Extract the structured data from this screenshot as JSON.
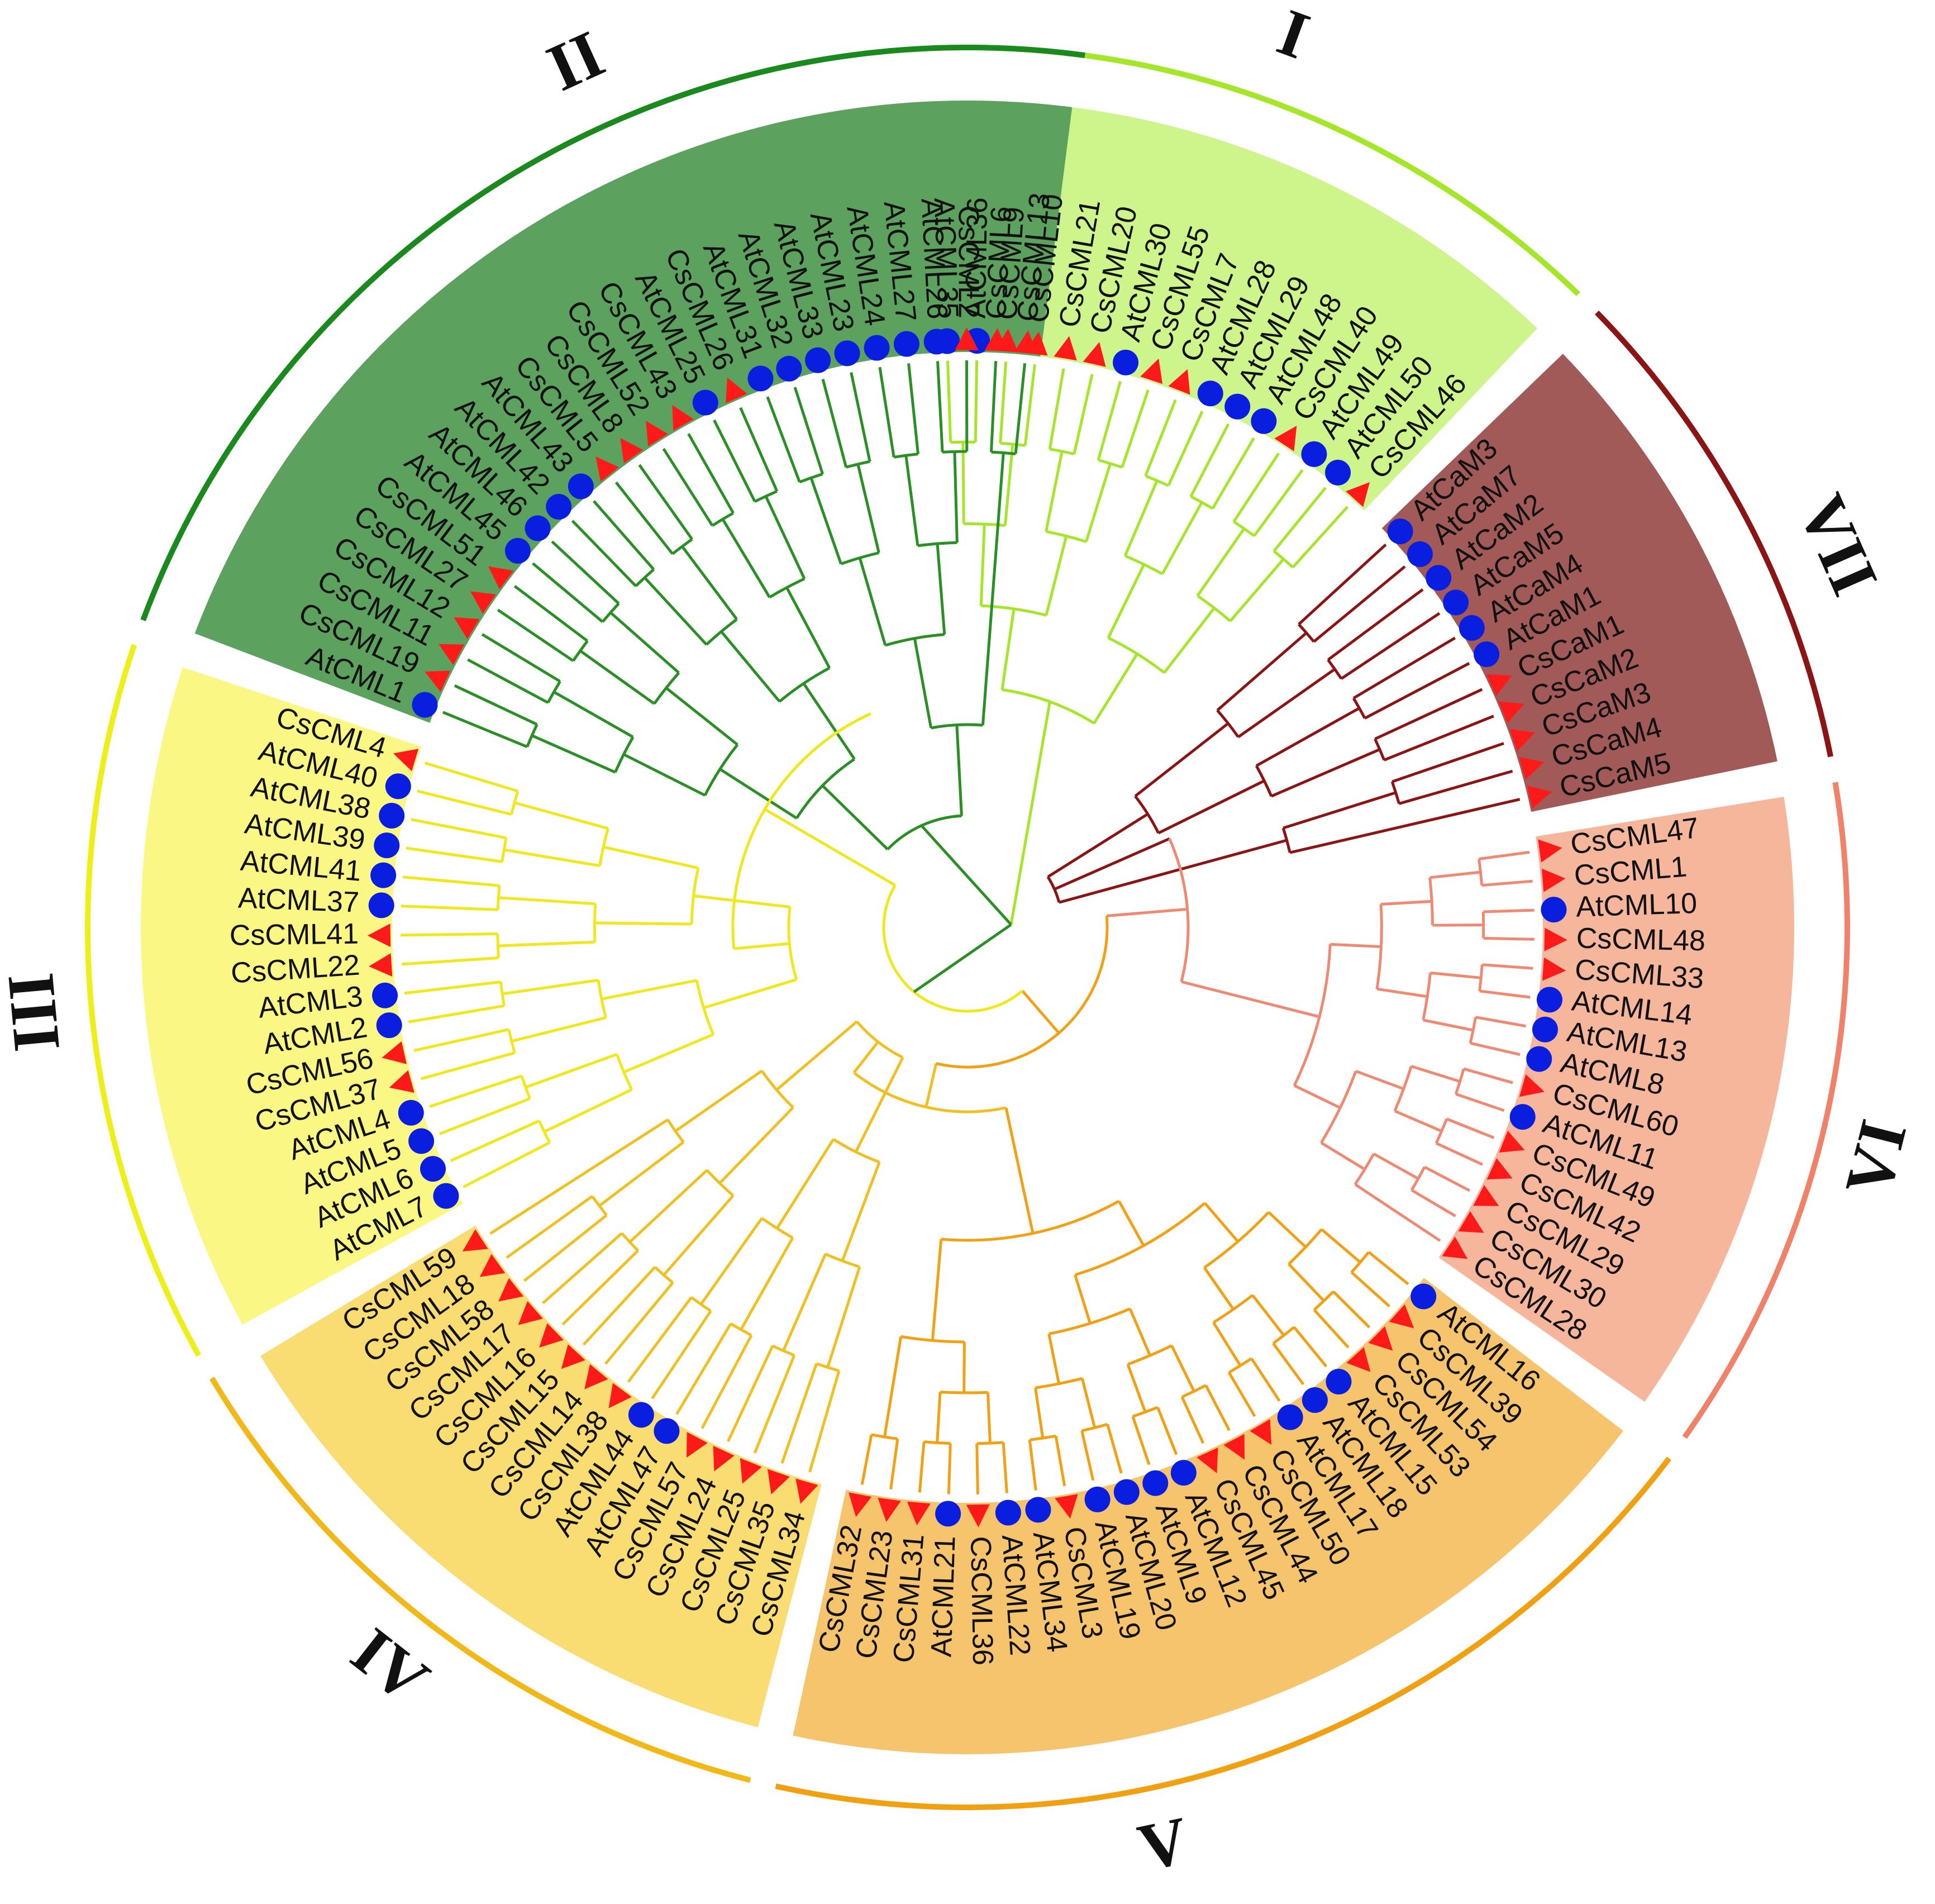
{
  "title": "Phylogenetic tree of CML and CaM proteins (Cs and At)",
  "marker_legend": {
    "Cs": {
      "shape": "triangle",
      "color": "#ff1a1a"
    },
    "At": {
      "shape": "circle",
      "color": "#0a1ee0"
    }
  },
  "clades": [
    {
      "numeral": "I",
      "band_color": "#cdf58c",
      "line_color": "#a6e62a",
      "branch_color": "#a6e62a",
      "leaves": [
        "AtCML35",
        "AtCML36",
        "CsCML9",
        "CsCML10",
        "CsCML21",
        "CsCML20",
        "AtCML30",
        "CsCML55",
        "CsCML7",
        "AtCML28",
        "AtCML29",
        "AtCML48",
        "CsCML40",
        "AtCML49",
        "AtCML50",
        "CsCML46"
      ]
    },
    {
      "numeral": "VII",
      "band_color": "#a25a58",
      "line_color": "#8b1414",
      "branch_color": "#8b1414",
      "leaves": [
        "AtCaM3",
        "AtCaM7",
        "AtCaM2",
        "AtCaM5",
        "AtCaM4",
        "AtCaM1",
        "CsCaM1",
        "CsCaM2",
        "CsCaM3",
        "CsCaM4",
        "CsCaM5"
      ]
    },
    {
      "numeral": "VI",
      "band_color": "#f5b69c",
      "line_color": "#f0826a",
      "branch_color": "#ee8a74",
      "leaves": [
        "CsCML47",
        "CsCML1",
        "AtCML10",
        "CsCML48",
        "CsCML33",
        "AtCML14",
        "AtCML13",
        "AtCML8",
        "CsCML60",
        "AtCML11",
        "CsCML49",
        "CsCML42",
        "CsCML29",
        "CsCML30",
        "CsCML28"
      ]
    },
    {
      "numeral": "V",
      "band_color": "#f7c46e",
      "line_color": "#f0a010",
      "branch_color": "#f2a014",
      "leaves": [
        "AtCML16",
        "CsCML39",
        "CsCML54",
        "CsCML53",
        "AtCML15",
        "AtCML18",
        "AtCML17",
        "CsCML50",
        "CsCML44",
        "CsCML45",
        "AtCML12",
        "AtCML9",
        "AtCML20",
        "AtCML19",
        "CsCML3",
        "AtCML34",
        "AtCML22",
        "CsCML36",
        "AtCML21",
        "CsCML31",
        "CsCML23",
        "CsCML32"
      ]
    },
    {
      "numeral": "IV",
      "band_color": "#f9dd72",
      "line_color": "#f2b818",
      "branch_color": "#efc020",
      "leaves": [
        "CsCML34",
        "CsCML35",
        "CsCML25",
        "CsCML24",
        "CsCML57",
        "AtCML47",
        "AtCML44",
        "CsCML38",
        "CsCML14",
        "CsCML15",
        "CsCML16",
        "CsCML17",
        "CsCML58",
        "CsCML18",
        "CsCML59"
      ]
    },
    {
      "numeral": "III",
      "band_color": "#fbf784",
      "line_color": "#eeee18",
      "branch_color": "#f0e81c",
      "leaves": [
        "AtCML7",
        "AtCML6",
        "AtCML5",
        "AtCML4",
        "CsCML37",
        "CsCML56",
        "AtCML2",
        "AtCML3",
        "CsCML22",
        "CsCML41",
        "AtCML37",
        "AtCML41",
        "AtCML39",
        "AtCML38",
        "AtCML40",
        "CsCML4"
      ]
    },
    {
      "numeral": "II",
      "band_color": "#5ca25e",
      "line_color": "#1b8a1e",
      "branch_color": "#2a8f24",
      "leaves": [
        "AtCML1",
        "CsCML19",
        "CsCML11",
        "CsCML12",
        "CsCML27",
        "CsCML51",
        "AtCML45",
        "AtCML46",
        "AtCML42",
        "AtCML43",
        "CsCML5",
        "CsCML8",
        "CsCML52",
        "CsCML43",
        "AtCML25",
        "CsCML26",
        "AtCML31",
        "AtCML32",
        "AtCML33",
        "AtCML23",
        "AtCML24",
        "AtCML27",
        "AtCML26",
        "CsCML2",
        "CsCML6",
        "CsCML13"
      ]
    }
  ]
}
